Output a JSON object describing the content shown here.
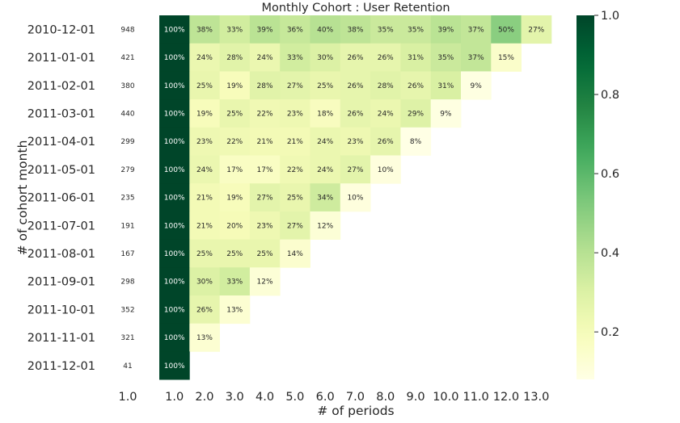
{
  "chart_data": {
    "type": "heatmap",
    "title": "Monthly Cohort : User Retention",
    "xlabel": "# of periods",
    "ylabel": "# of cohort month",
    "cohort_size_column_label": "1.0",
    "x_tick_labels": [
      "1.0",
      "2.0",
      "3.0",
      "4.0",
      "5.0",
      "6.0",
      "7.0",
      "8.0",
      "9.0",
      "10.0",
      "11.0",
      "12.0",
      "13.0"
    ],
    "y_tick_labels": [
      "2010-12-01",
      "2011-01-01",
      "2011-02-01",
      "2011-03-01",
      "2011-04-01",
      "2011-05-01",
      "2011-06-01",
      "2011-07-01",
      "2011-08-01",
      "2011-09-01",
      "2011-10-01",
      "2011-11-01",
      "2011-12-01"
    ],
    "cohort_sizes": [
      948,
      421,
      380,
      440,
      299,
      279,
      235,
      191,
      167,
      298,
      352,
      321,
      41
    ],
    "values": [
      [
        1.0,
        0.38,
        0.33,
        0.39,
        0.36,
        0.4,
        0.38,
        0.35,
        0.35,
        0.39,
        0.37,
        0.5,
        0.27
      ],
      [
        1.0,
        0.24,
        0.28,
        0.24,
        0.33,
        0.3,
        0.26,
        0.26,
        0.31,
        0.35,
        0.37,
        0.15
      ],
      [
        1.0,
        0.25,
        0.19,
        0.28,
        0.27,
        0.25,
        0.26,
        0.28,
        0.26,
        0.31,
        0.09
      ],
      [
        1.0,
        0.19,
        0.25,
        0.22,
        0.23,
        0.18,
        0.26,
        0.24,
        0.29,
        0.09
      ],
      [
        1.0,
        0.23,
        0.22,
        0.21,
        0.21,
        0.24,
        0.23,
        0.26,
        0.08
      ],
      [
        1.0,
        0.24,
        0.17,
        0.17,
        0.22,
        0.24,
        0.27,
        0.1
      ],
      [
        1.0,
        0.21,
        0.19,
        0.27,
        0.25,
        0.34,
        0.1
      ],
      [
        1.0,
        0.21,
        0.2,
        0.23,
        0.27,
        0.12
      ],
      [
        1.0,
        0.25,
        0.25,
        0.25,
        0.14
      ],
      [
        1.0,
        0.3,
        0.33,
        0.12
      ],
      [
        1.0,
        0.26,
        0.13
      ],
      [
        1.0,
        0.13
      ],
      [
        1.0
      ]
    ],
    "value_labels": [
      [
        "100%",
        "38%",
        "33%",
        "39%",
        "36%",
        "40%",
        "38%",
        "35%",
        "35%",
        "39%",
        "37%",
        "50%",
        "27%"
      ],
      [
        "100%",
        "24%",
        "28%",
        "24%",
        "33%",
        "30%",
        "26%",
        "26%",
        "31%",
        "35%",
        "37%",
        "15%"
      ],
      [
        "100%",
        "25%",
        "19%",
        "28%",
        "27%",
        "25%",
        "26%",
        "28%",
        "26%",
        "31%",
        "9%"
      ],
      [
        "100%",
        "19%",
        "25%",
        "22%",
        "23%",
        "18%",
        "26%",
        "24%",
        "29%",
        "9%"
      ],
      [
        "100%",
        "23%",
        "22%",
        "21%",
        "21%",
        "24%",
        "23%",
        "26%",
        "8%"
      ],
      [
        "100%",
        "24%",
        "17%",
        "17%",
        "22%",
        "24%",
        "27%",
        "10%"
      ],
      [
        "100%",
        "21%",
        "19%",
        "27%",
        "25%",
        "34%",
        "10%"
      ],
      [
        "100%",
        "21%",
        "20%",
        "23%",
        "27%",
        "12%"
      ],
      [
        "100%",
        "25%",
        "25%",
        "25%",
        "14%"
      ],
      [
        "100%",
        "30%",
        "33%",
        "12%"
      ],
      [
        "100%",
        "26%",
        "13%"
      ],
      [
        "100%",
        "13%"
      ],
      [
        "100%"
      ]
    ],
    "color_scale": "YlGn",
    "colorbar": {
      "min": 0.08,
      "max": 1.0,
      "ticks": [
        0.2,
        0.4,
        0.6,
        0.8,
        1.0
      ],
      "tick_labels": [
        "0.2",
        "0.4",
        "0.6",
        "0.8",
        "1.0"
      ]
    },
    "grid": false
  }
}
